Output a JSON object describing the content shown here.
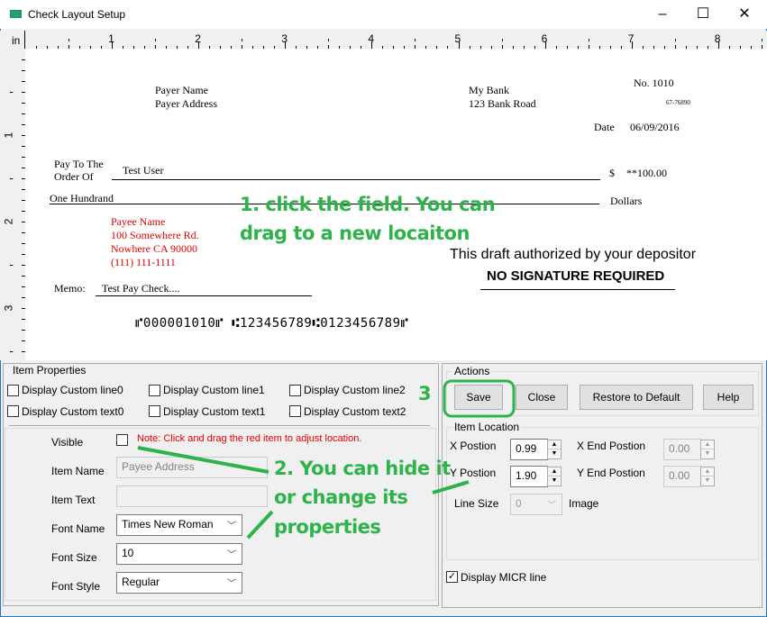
{
  "window": {
    "title": "Check Layout Setup",
    "minimize": "–",
    "maximize": "☐",
    "close": "✕"
  },
  "ruler": {
    "unit": "in",
    "h_labels": [
      "1",
      "2",
      "3",
      "4",
      "5",
      "6",
      "7",
      "8"
    ],
    "v_labels": [
      "1",
      "2",
      "3"
    ]
  },
  "check": {
    "payer_name": "Payer Name",
    "payer_address": "Payer Address",
    "bank_name": "My Bank",
    "bank_address": "123 Bank Road",
    "check_no": "No. 1010",
    "fraction": "67-76890",
    "date_label": "Date",
    "date": "06/09/2016",
    "pay_to_label_1": "Pay To The",
    "pay_to_label_2": "Order Of",
    "payee": "Test User",
    "dollar_sign": "$",
    "amount": "**100.00",
    "amount_words": "One Hundrand",
    "dollars_label": "Dollars",
    "payee_block": [
      "Payee Name",
      "100 Somewhere Rd.",
      "Nowhere CA 90000",
      "(111) 111-1111"
    ],
    "authorized": "This draft authorized by your depositor",
    "no_signature": "NO SIGNATURE REQUIRED",
    "memo_label": "Memo:",
    "memo": "Test Pay Check....",
    "micr": "⑈000001010⑈ ⑆123456789⑆0123456789⑈"
  },
  "annotations": {
    "a1_line1": "1. click the field. You can",
    "a1_line2": "drag to a new locaiton",
    "a2_line1": "2. You can hide it",
    "a2_line2": "or change its",
    "a2_line3": "properties",
    "a3": "3",
    "color": "#2db34a"
  },
  "item_properties": {
    "title": "Item Properties",
    "checkboxes": [
      {
        "label": "Display Custom line0",
        "checked": false
      },
      {
        "label": "Display Custom line1",
        "checked": false
      },
      {
        "label": "Display Custom line2",
        "checked": false
      },
      {
        "label": "Display Custom text0",
        "checked": false
      },
      {
        "label": "Display Custom text1",
        "checked": false
      },
      {
        "label": "Display Custom text2",
        "checked": false
      }
    ],
    "visible_label": "Visible",
    "visible_checked": false,
    "note": "Note: Click and drag the red item to adjust location.",
    "item_name_label": "Item Name",
    "item_name": "Payee Address",
    "item_text_label": "Item Text",
    "item_text": "",
    "font_name_label": "Font Name",
    "font_name": "Times New Roman",
    "font_size_label": "Font Size",
    "font_size": "10",
    "font_style_label": "Font Style",
    "font_style": "Regular"
  },
  "actions": {
    "title": "Actions",
    "save": "Save",
    "close": "Close",
    "restore": "Restore to Default",
    "help": "Help"
  },
  "item_location": {
    "title": "Item Location",
    "x_label": "X Postion",
    "x": "0.99",
    "y_label": "Y Postion",
    "y": "1.90",
    "x_end_label": "X End Postion",
    "x_end": "0.00",
    "y_end_label": "Y End Postion",
    "y_end": "0.00",
    "line_size_label": "Line Size",
    "line_size": "0",
    "image_label": "Image"
  },
  "display_micr": {
    "label": "Display MICR line",
    "checked": true
  }
}
